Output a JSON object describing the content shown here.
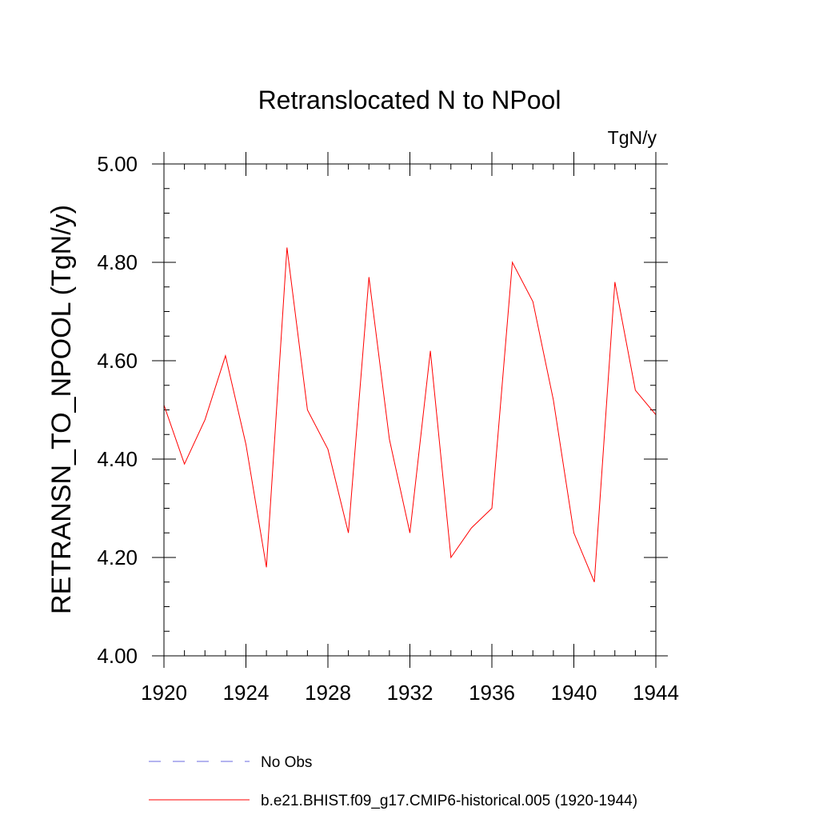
{
  "chart_data": {
    "type": "line",
    "title": "Retranslocated N to NPool",
    "units_label": "TgN/y",
    "ylabel": "RETRANSN_TO_NPOOL  (TgN/y)",
    "xlabel": "",
    "xlim": [
      1920,
      1944
    ],
    "ylim": [
      4.0,
      5.0
    ],
    "x_ticks": [
      1920,
      1924,
      1928,
      1932,
      1936,
      1940,
      1944
    ],
    "x_tick_labels": [
      "1920",
      "1924",
      "1928",
      "1932",
      "1936",
      "1940",
      "1944"
    ],
    "x_minor_step": 1,
    "y_ticks": [
      4.0,
      4.2,
      4.4,
      4.6,
      4.8,
      5.0
    ],
    "y_tick_labels": [
      "4.00",
      "4.20",
      "4.40",
      "4.60",
      "4.80",
      "5.00"
    ],
    "y_minor_step": 0.05,
    "grid": false,
    "legend_position": "bottom",
    "series": [
      {
        "name": "No Obs",
        "color": "#6a6ae0",
        "style": "dashed",
        "x": [],
        "y": []
      },
      {
        "name": "b.e21.BHIST.f09_g17.CMIP6-historical.005 (1920-1944)",
        "color": "#ff0000",
        "style": "solid",
        "x": [
          1920,
          1921,
          1922,
          1923,
          1924,
          1925,
          1926,
          1927,
          1928,
          1929,
          1930,
          1931,
          1932,
          1933,
          1934,
          1935,
          1936,
          1937,
          1938,
          1939,
          1940,
          1941,
          1942,
          1943,
          1944
        ],
        "y": [
          4.51,
          4.39,
          4.48,
          4.61,
          4.43,
          4.18,
          4.83,
          4.5,
          4.42,
          4.25,
          4.77,
          4.44,
          4.25,
          4.62,
          4.2,
          4.26,
          4.3,
          4.8,
          4.72,
          4.52,
          4.25,
          4.15,
          4.76,
          4.54,
          4.49
        ]
      }
    ]
  }
}
